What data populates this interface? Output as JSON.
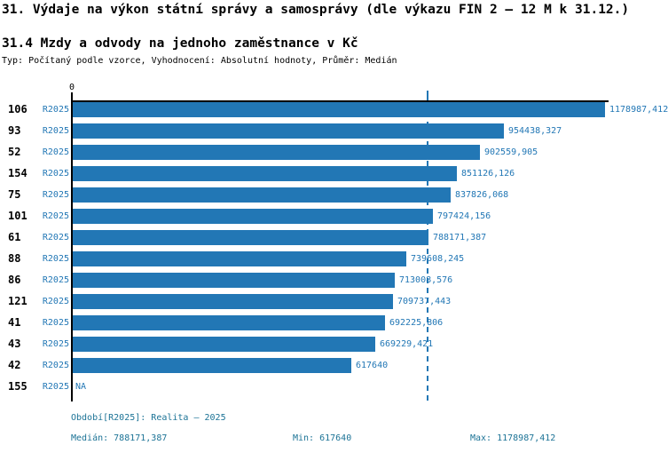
{
  "header": {
    "title": "31. Výdaje na výkon státní správy a samosprávy (dle výkazu FIN 2 – 12 M k 31.12.)",
    "subtitle": "31.4 Mzdy a odvody na jednoho zaměstnance v Kč",
    "meta": "Typ: Počítaný podle vzorce, Vyhodnocení: Absolutní hodnoty, Průměr: Medián"
  },
  "chart_data": {
    "type": "bar",
    "orientation": "horizontal",
    "axis_origin_label": "0",
    "series_label": "R2025",
    "categories": [
      "106",
      "93",
      "52",
      "154",
      "75",
      "101",
      "61",
      "88",
      "86",
      "121",
      "41",
      "43",
      "42",
      "155"
    ],
    "values": [
      1178987.412,
      954438.327,
      902559.905,
      851126.126,
      837826.068,
      797424.156,
      788171.387,
      739608.245,
      713008.576,
      709737.443,
      692225.806,
      669229.421,
      617640,
      null
    ],
    "value_labels": [
      "1178987,412",
      "954438,327",
      "902559,905",
      "851126,126",
      "837826,068",
      "797424,156",
      "788171,387",
      "739608,245",
      "713008,576",
      "709737,443",
      "692225,806",
      "669229,421",
      "617640",
      "NA"
    ],
    "na_label": "NA",
    "median_value": 788171.387,
    "xlim": [
      0,
      1178987.412
    ],
    "legend_position": "none",
    "grid": false,
    "colors": {
      "bar": "#2277b5",
      "axis": "#000000",
      "median_line": "#2277b5",
      "value_text": "#2277b5",
      "footer_text": "#1c7396"
    }
  },
  "footer": {
    "period": "Období[R2025]: Realita – 2025",
    "median": "Medián: 788171,387",
    "min": "Min: 617640",
    "max": "Max: 1178987,412"
  }
}
